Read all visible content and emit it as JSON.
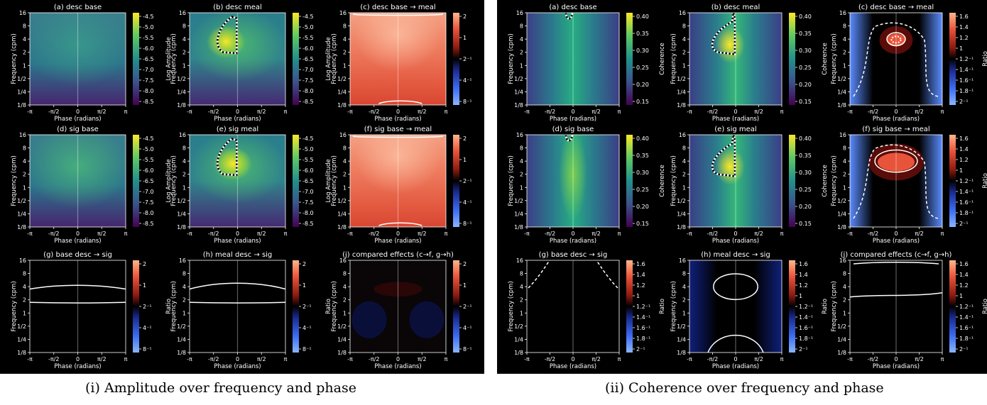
{
  "figure": {
    "caption_i": "(i) Amplitude over frequency and phase",
    "caption_ii": "(ii) Coherence over frequency and phase"
  },
  "axes_common": {
    "xlabel": "Phase (radians)",
    "ylabel": "Frequency (cpm)",
    "x_ticks": [
      "-π",
      "-π/2",
      "0",
      "π/2",
      "π"
    ],
    "y_ticks": [
      "1/8",
      "1/4",
      "1/2",
      "1",
      "2",
      "4",
      "8",
      "16"
    ]
  },
  "colorbars": {
    "log_amplitude": {
      "label": "Log Amplitude",
      "colormap": "viridis",
      "ticks": [
        "-4.5",
        "-5.0",
        "-5.5",
        "-6.0",
        "-6.5",
        "-7.0",
        "-7.5",
        "-8.0",
        "-8.5"
      ]
    },
    "ratio_amp": {
      "label": "Ratio",
      "colormap": "diverging",
      "ticks": [
        "2",
        "1",
        "2⁻¹",
        "4⁻¹",
        "8⁻¹"
      ]
    },
    "coherence": {
      "label": "Coherence",
      "colormap": "viridis",
      "ticks": [
        "0.40",
        "0.35",
        "0.30",
        "0.25",
        "0.20",
        "0.15"
      ]
    },
    "ratio_coh": {
      "label": "Ratio",
      "colormap": "diverging",
      "ticks": [
        "1.6",
        "1.4",
        "1.2",
        "1",
        "1.2⁻¹",
        "1.4⁻¹",
        "1.6⁻¹",
        "1.8⁻¹",
        "2⁻¹"
      ]
    }
  },
  "chart_data": [
    {
      "group": "i",
      "type": "heatmap",
      "panels": [
        {
          "title": "(a) desc base",
          "kind": "amp_base",
          "colorbar": "log_amplitude"
        },
        {
          "title": "(b) desc meal",
          "kind": "amp_meal",
          "colorbar": "log_amplitude"
        },
        {
          "title": "(c) desc base → meal",
          "kind": "ratio_meal",
          "colorbar": "ratio_amp"
        },
        {
          "title": "(d) sig base",
          "kind": "amp_sig_base",
          "colorbar": "log_amplitude"
        },
        {
          "title": "(e) sig meal",
          "kind": "amp_sig_meal",
          "colorbar": "log_amplitude"
        },
        {
          "title": "(f) sig base → meal",
          "kind": "ratio_sig",
          "colorbar": "ratio_amp"
        },
        {
          "title": "(g) base desc → sig",
          "kind": "band",
          "colorbar": "ratio_amp"
        },
        {
          "title": "(h) meal desc → sig",
          "kind": "band2",
          "colorbar": "ratio_amp"
        },
        {
          "title": "(j) compared effects (c→f, g→h)",
          "kind": "dark",
          "colorbar": "ratio_amp"
        }
      ]
    },
    {
      "group": "ii",
      "type": "heatmap",
      "panels": [
        {
          "title": "(a) desc base",
          "kind": "coh_base",
          "colorbar": "coherence"
        },
        {
          "title": "(b) desc meal",
          "kind": "coh_meal",
          "colorbar": "coherence"
        },
        {
          "title": "(c) desc base → meal",
          "kind": "coh_ratio_c",
          "colorbar": "ratio_coh"
        },
        {
          "title": "(d) sig base",
          "kind": "coh_sig_base",
          "colorbar": "coherence"
        },
        {
          "title": "(e) sig meal",
          "kind": "coh_sig_meal",
          "colorbar": "coherence"
        },
        {
          "title": "(f) sig base → meal",
          "kind": "coh_ratio_f",
          "colorbar": "ratio_coh"
        },
        {
          "title": "(g) base desc → sig",
          "kind": "coh_g",
          "colorbar": "ratio_coh"
        },
        {
          "title": "(h) meal desc → sig",
          "kind": "coh_h",
          "colorbar": "ratio_coh"
        },
        {
          "title": "(j) compared effects (c→f, g→h)",
          "kind": "coh_j",
          "colorbar": "ratio_coh"
        }
      ]
    }
  ]
}
